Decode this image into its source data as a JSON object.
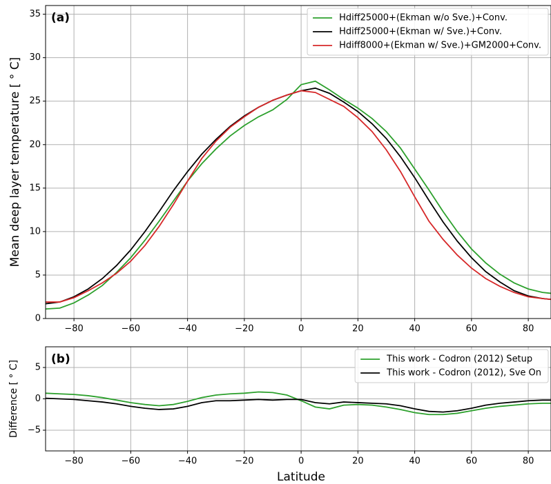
{
  "chart_data": [
    {
      "type": "line",
      "label": "(a)",
      "ylabel": "Mean deep layer temperature [ ° C]",
      "x": [
        -90,
        -85,
        -80,
        -75,
        -70,
        -65,
        -60,
        -55,
        -50,
        -45,
        -40,
        -35,
        -30,
        -25,
        -20,
        -15,
        -10,
        -5,
        0,
        5,
        10,
        15,
        20,
        25,
        30,
        35,
        40,
        45,
        50,
        55,
        60,
        65,
        70,
        75,
        80,
        85,
        88
      ],
      "series": [
        {
          "name": "Hdiff25000+(Ekman w/o Sve.)+Conv.",
          "color": "#2ca02c",
          "values": [
            1.1,
            1.2,
            1.8,
            2.7,
            3.8,
            5.3,
            7.0,
            9.0,
            11.2,
            13.5,
            15.8,
            17.8,
            19.5,
            21.0,
            22.2,
            23.2,
            24.0,
            25.2,
            26.9,
            27.3,
            26.3,
            25.2,
            24.2,
            23.0,
            21.5,
            19.6,
            17.2,
            14.8,
            12.3,
            10.0,
            8.0,
            6.4,
            5.1,
            4.1,
            3.4,
            3.0,
            2.9
          ]
        },
        {
          "name": "Hdiff25000+(Ekman w/ Sve.)+Conv.",
          "color": "#000000",
          "values": [
            1.7,
            1.9,
            2.5,
            3.4,
            4.6,
            6.1,
            7.9,
            10.0,
            12.3,
            14.7,
            16.9,
            18.9,
            20.6,
            22.1,
            23.3,
            24.3,
            25.1,
            25.7,
            26.2,
            26.5,
            25.9,
            24.9,
            23.8,
            22.4,
            20.7,
            18.6,
            16.2,
            13.6,
            11.1,
            8.9,
            7.0,
            5.4,
            4.2,
            3.2,
            2.6,
            2.3,
            2.2
          ]
        },
        {
          "name": "Hdiff8000+(Ekman w/ Sve.)+GM2000+Conv.",
          "color": "#d62728",
          "values": [
            1.9,
            1.9,
            2.4,
            3.2,
            4.1,
            5.2,
            6.6,
            8.4,
            10.6,
            13.1,
            15.8,
            18.4,
            20.4,
            22.0,
            23.2,
            24.3,
            25.1,
            25.7,
            26.2,
            26.0,
            25.2,
            24.4,
            23.1,
            21.5,
            19.4,
            16.9,
            14.0,
            11.2,
            9.1,
            7.3,
            5.8,
            4.6,
            3.7,
            3.0,
            2.5,
            2.3,
            2.2
          ]
        }
      ],
      "xlim": [
        -90,
        88
      ],
      "ylim": [
        0,
        36
      ],
      "xticks": [
        {
          "value": -80,
          "label": "−80"
        },
        {
          "value": -60,
          "label": "−60"
        },
        {
          "value": -40,
          "label": "−40"
        },
        {
          "value": -20,
          "label": "−20"
        },
        0,
        20,
        40,
        60,
        80
      ],
      "yticks": [
        0,
        5,
        10,
        15,
        20,
        25,
        30,
        35
      ],
      "grid": true,
      "legend": "upper right"
    },
    {
      "type": "line",
      "label": "(b)",
      "ylabel": "Difference [ ° C]",
      "xlabel": "Latitude",
      "x": [
        -90,
        -85,
        -80,
        -75,
        -70,
        -65,
        -60,
        -55,
        -50,
        -45,
        -40,
        -35,
        -30,
        -25,
        -20,
        -15,
        -10,
        -5,
        0,
        5,
        10,
        15,
        20,
        25,
        30,
        35,
        40,
        45,
        50,
        55,
        60,
        65,
        70,
        75,
        80,
        85,
        88
      ],
      "series": [
        {
          "name": "This work - Codron (2012) Setup",
          "color": "#2ca02c",
          "values": [
            0.9,
            0.8,
            0.7,
            0.5,
            0.2,
            -0.2,
            -0.6,
            -0.9,
            -1.1,
            -0.9,
            -0.4,
            0.2,
            0.6,
            0.8,
            0.9,
            1.1,
            1.0,
            0.6,
            -0.3,
            -1.3,
            -1.6,
            -1.0,
            -0.9,
            -1.0,
            -1.3,
            -1.7,
            -2.2,
            -2.5,
            -2.5,
            -2.3,
            -1.9,
            -1.5,
            -1.2,
            -1.0,
            -0.8,
            -0.7,
            -0.7
          ]
        },
        {
          "name": "This work - Codron (2012), Sve On",
          "color": "#000000",
          "values": [
            0.1,
            0.0,
            -0.1,
            -0.3,
            -0.5,
            -0.8,
            -1.2,
            -1.5,
            -1.7,
            -1.6,
            -1.2,
            -0.6,
            -0.3,
            -0.3,
            -0.2,
            -0.1,
            -0.2,
            -0.1,
            -0.1,
            -0.6,
            -0.8,
            -0.5,
            -0.6,
            -0.7,
            -0.8,
            -1.1,
            -1.6,
            -2.0,
            -2.1,
            -1.9,
            -1.5,
            -1.0,
            -0.7,
            -0.5,
            -0.3,
            -0.2,
            -0.2
          ]
        }
      ],
      "xlim": [
        -90,
        88
      ],
      "ylim": [
        -8.3,
        8.3
      ],
      "xticks": [
        {
          "value": -80,
          "label": "−80"
        },
        {
          "value": -60,
          "label": "−60"
        },
        {
          "value": -40,
          "label": "−40"
        },
        {
          "value": -20,
          "label": "−20"
        },
        0,
        20,
        40,
        60,
        80
      ],
      "yticks": [
        {
          "value": -5,
          "label": "−5"
        },
        0,
        5
      ],
      "grid": true,
      "legend": "upper right"
    }
  ]
}
